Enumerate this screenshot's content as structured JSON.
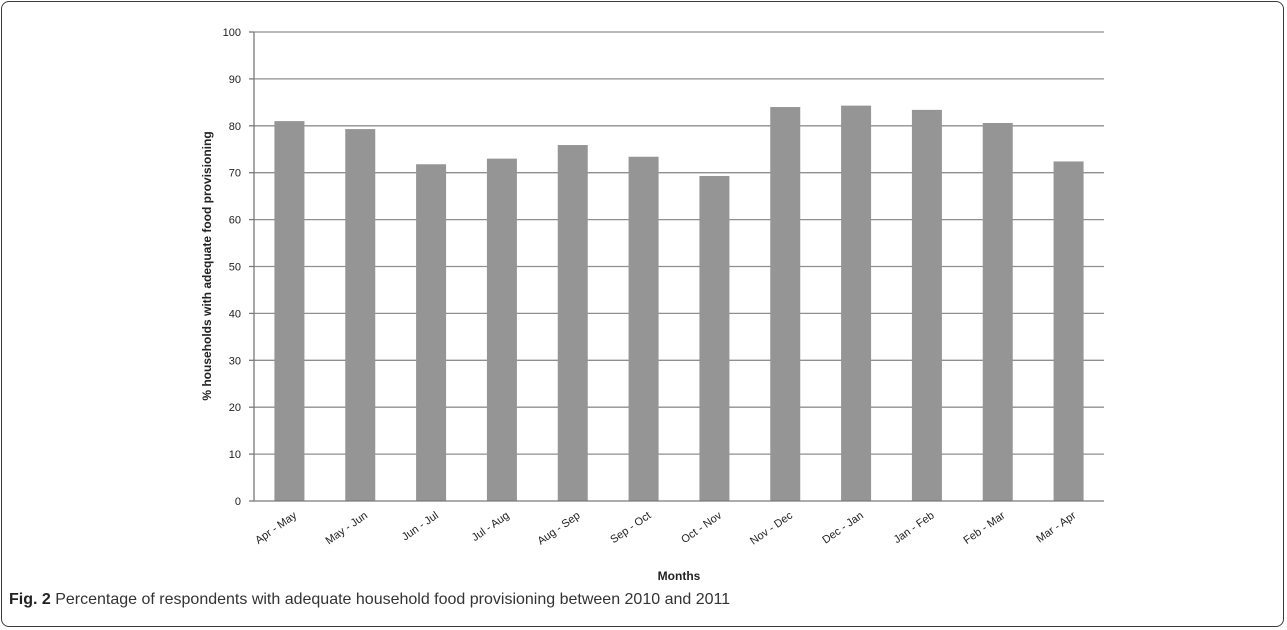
{
  "caption": {
    "label": "Fig. 2",
    "text": "Percentage of respondents with adequate household food provisioning between 2010 and 2011"
  },
  "colors": {
    "bar": "#959595",
    "grid": "#8f8f8f",
    "axis": "#7a7a7a"
  },
  "chart_data": {
    "type": "bar",
    "title": "",
    "xlabel": "Months",
    "ylabel": "% households with adequate food provisioning",
    "categories": [
      "Apr - May",
      "May - Jun",
      "Jun - Jul",
      "Jul - Aug",
      "Aug - Sep",
      "Sep - Oct",
      "Oct - Nov",
      "Nov - Dec",
      "Dec - Jan",
      "Jan - Feb",
      "Feb - Mar",
      "Mar - Apr"
    ],
    "values": [
      81,
      79.3,
      71.8,
      73,
      75.9,
      73.4,
      69.3,
      84,
      84.3,
      83.4,
      80.6,
      72.4
    ],
    "ylim": [
      0,
      100
    ],
    "yticks": [
      0,
      10,
      20,
      30,
      40,
      50,
      60,
      70,
      80,
      90,
      100
    ],
    "grid": true,
    "legend": "none"
  }
}
